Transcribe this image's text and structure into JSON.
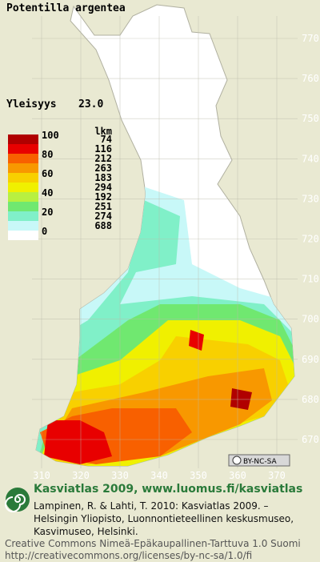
{
  "title": "Potentilla argentea",
  "frequency": {
    "label": "Yleisyys",
    "value": "23.0"
  },
  "legend": {
    "scale": [
      100,
      80,
      60,
      40,
      20,
      0
    ],
    "count_header": "lkm",
    "counts": [
      74,
      116,
      212,
      263,
      183,
      294,
      192,
      251,
      274,
      688
    ],
    "colors": [
      "#b00000",
      "#e80000",
      "#f86000",
      "#f89800",
      "#f8d000",
      "#f0f000",
      "#b8f040",
      "#70e870",
      "#80f0c8",
      "#c8f8f8",
      "#ffffff"
    ]
  },
  "grid": {
    "northing": [
      770,
      760,
      750,
      740,
      730,
      720,
      710,
      700,
      690,
      680,
      670
    ],
    "easting": [
      310,
      320,
      330,
      340,
      350,
      360,
      370
    ]
  },
  "license_badge": "BY-NC-SA",
  "footer": {
    "heading": "Kasviatlas 2009, www.luomus.fi/kasviatlas",
    "citation": "Lampinen, R. & Lahti, T. 2010: Kasviatlas 2009. – Helsingin Yliopisto, Luonnontieteellinen keskusmuseo, Kasvimuseo, Helsinki.",
    "license": "Creative Commons Nimeä-Epäkaupallinen-Tarttuva 1.0 Suomi",
    "license_url": "http://creativecommons.org/licenses/by-nc-sa/1.0/fi"
  }
}
